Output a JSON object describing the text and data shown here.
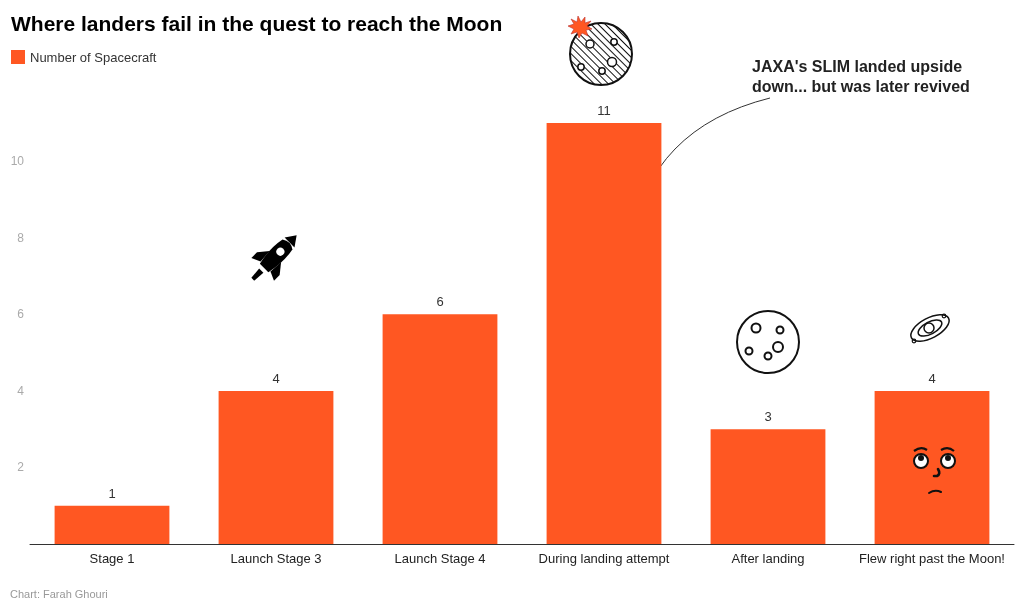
{
  "chart_data": {
    "type": "bar",
    "title": "Where landers fail in the quest to reach the Moon",
    "categories": [
      "Stage 1",
      "Launch Stage 3",
      "Launch Stage 4",
      "During landing attempt",
      "After landing",
      "Flew right past the Moon!"
    ],
    "series": [
      {
        "name": "Number of Spacecraft",
        "color": "#ff5722",
        "values": [
          1,
          4,
          6,
          11,
          3,
          4
        ]
      }
    ],
    "ylim": [
      0,
      11
    ],
    "yticks": [
      2,
      4,
      6,
      8,
      10
    ],
    "grid": false,
    "legend": "top left",
    "data_labels": true,
    "annotations": [
      "JAXA's SLIM landed upside down... but was later revived",
      "Chart: Farah Ghouri"
    ]
  }
}
